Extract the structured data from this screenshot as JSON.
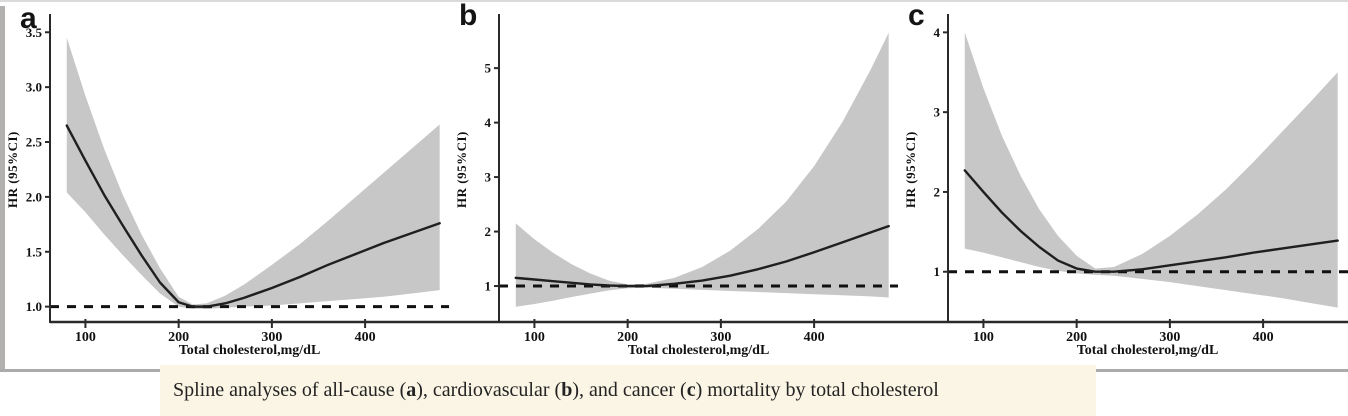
{
  "figure": {
    "caption_segments": [
      {
        "text": "Spline analyses of all-cause (",
        "bold": false
      },
      {
        "text": "a",
        "bold": true
      },
      {
        "text": "), cardiovascular (",
        "bold": false
      },
      {
        "text": "b",
        "bold": true
      },
      {
        "text": "), and cancer (",
        "bold": false
      },
      {
        "text": "c",
        "bold": true
      },
      {
        "text": ") mortality by total cholesterol",
        "bold": false
      }
    ],
    "colors": {
      "band": "#c7c7c7",
      "line": "#1f1f1f",
      "axis": "#2a2a2a",
      "ref_line": "#111111",
      "tick_text": "#111111",
      "caption_bg": "#faf5e4",
      "border_left": "#b3b1b0",
      "border_top": "#dadada",
      "border_bottom": "#ababab"
    }
  },
  "chart_data": [
    {
      "type": "line",
      "panel_label": "a",
      "outcome": "all-cause mortality",
      "xlabel": "Total cholesterol,mg/dL",
      "ylabel": "HR (95%CI)",
      "x": [
        80,
        100,
        120,
        140,
        160,
        180,
        200,
        215,
        230,
        250,
        270,
        300,
        330,
        360,
        390,
        420,
        450,
        480
      ],
      "series": [
        {
          "name": "HR",
          "values": [
            2.65,
            2.33,
            2.02,
            1.74,
            1.47,
            1.22,
            1.04,
            1.0,
            1.0,
            1.03,
            1.08,
            1.17,
            1.27,
            1.38,
            1.48,
            1.58,
            1.67,
            1.76
          ]
        },
        {
          "name": "upper 95% CI",
          "values": [
            3.45,
            2.92,
            2.44,
            2.02,
            1.66,
            1.35,
            1.09,
            1.02,
            1.03,
            1.1,
            1.2,
            1.38,
            1.57,
            1.78,
            2.0,
            2.22,
            2.44,
            2.66
          ]
        },
        {
          "name": "lower 95% CI",
          "values": [
            2.04,
            1.86,
            1.66,
            1.47,
            1.29,
            1.12,
            1.0,
            0.98,
            0.98,
            0.99,
            1.0,
            1.01,
            1.03,
            1.05,
            1.07,
            1.09,
            1.12,
            1.15
          ]
        }
      ],
      "ref_line_y": 1.0,
      "x_ticks": [
        100,
        200,
        300,
        400
      ],
      "y_ticks": [
        {
          "value": 1.0,
          "label": "1.0"
        },
        {
          "value": 1.5,
          "label": "1.5"
        },
        {
          "value": 2.0,
          "label": "2.0"
        },
        {
          "value": 2.5,
          "label": "2.5"
        },
        {
          "value": 3.0,
          "label": "3.0"
        },
        {
          "value": 3.5,
          "label": "3.5"
        }
      ],
      "xlim": [
        62,
        490
      ],
      "ylim": [
        0.86,
        3.63
      ],
      "grid": false,
      "legend": "none"
    },
    {
      "type": "line",
      "panel_label": "b",
      "outcome": "cardiovascular mortality",
      "xlabel": "Total cholesterol,mg/dL",
      "ylabel": "HR (95%CI)",
      "x": [
        80,
        100,
        120,
        140,
        160,
        180,
        200,
        220,
        250,
        280,
        310,
        340,
        370,
        400,
        430,
        460,
        480
      ],
      "series": [
        {
          "name": "HR",
          "values": [
            1.15,
            1.12,
            1.09,
            1.06,
            1.03,
            1.01,
            1.0,
            1.0,
            1.04,
            1.1,
            1.19,
            1.31,
            1.45,
            1.62,
            1.8,
            1.98,
            2.1
          ]
        },
        {
          "name": "upper 95% CI",
          "values": [
            2.15,
            1.86,
            1.61,
            1.4,
            1.23,
            1.1,
            1.03,
            1.04,
            1.15,
            1.35,
            1.65,
            2.05,
            2.55,
            3.2,
            4.0,
            4.95,
            5.65
          ]
        },
        {
          "name": "lower 95% CI",
          "values": [
            0.62,
            0.67,
            0.73,
            0.8,
            0.86,
            0.92,
            0.96,
            0.97,
            0.95,
            0.93,
            0.91,
            0.89,
            0.87,
            0.85,
            0.83,
            0.81,
            0.79
          ]
        }
      ],
      "ref_line_y": 1.0,
      "x_ticks": [
        100,
        200,
        300,
        400
      ],
      "y_ticks": [
        {
          "value": 1,
          "label": "1"
        },
        {
          "value": 2,
          "label": "2"
        },
        {
          "value": 3,
          "label": "3"
        },
        {
          "value": 4,
          "label": "4"
        },
        {
          "value": 5,
          "label": "5"
        }
      ],
      "xlim": [
        62,
        490
      ],
      "ylim": [
        0.34,
        5.92
      ],
      "grid": false,
      "legend": "none"
    },
    {
      "type": "line",
      "panel_label": "c",
      "outcome": "cancer mortality",
      "xlabel": "Total cholesterol,mg/dL",
      "ylabel": "HR (95%CI)",
      "x": [
        80,
        100,
        120,
        140,
        160,
        180,
        200,
        220,
        240,
        270,
        300,
        330,
        360,
        390,
        420,
        450,
        480
      ],
      "series": [
        {
          "name": "HR",
          "values": [
            2.27,
            2.0,
            1.74,
            1.51,
            1.31,
            1.14,
            1.04,
            1.0,
            1.0,
            1.03,
            1.08,
            1.13,
            1.18,
            1.24,
            1.29,
            1.34,
            1.39
          ]
        },
        {
          "name": "upper 95% CI",
          "values": [
            4.0,
            3.3,
            2.7,
            2.2,
            1.78,
            1.45,
            1.2,
            1.04,
            1.06,
            1.22,
            1.45,
            1.72,
            2.03,
            2.38,
            2.75,
            3.12,
            3.5
          ]
        },
        {
          "name": "lower 95% CI",
          "values": [
            1.29,
            1.24,
            1.18,
            1.12,
            1.06,
            1.01,
            0.98,
            0.96,
            0.95,
            0.91,
            0.87,
            0.82,
            0.77,
            0.72,
            0.67,
            0.61,
            0.55
          ]
        }
      ],
      "ref_line_y": 1.0,
      "x_ticks": [
        100,
        200,
        300,
        400
      ],
      "y_ticks": [
        {
          "value": 1,
          "label": "1"
        },
        {
          "value": 2,
          "label": "2"
        },
        {
          "value": 3,
          "label": "3"
        },
        {
          "value": 4,
          "label": "4"
        }
      ],
      "xlim": [
        62,
        490
      ],
      "ylim": [
        0.37,
        4.18
      ],
      "grid": false,
      "legend": "none"
    }
  ]
}
